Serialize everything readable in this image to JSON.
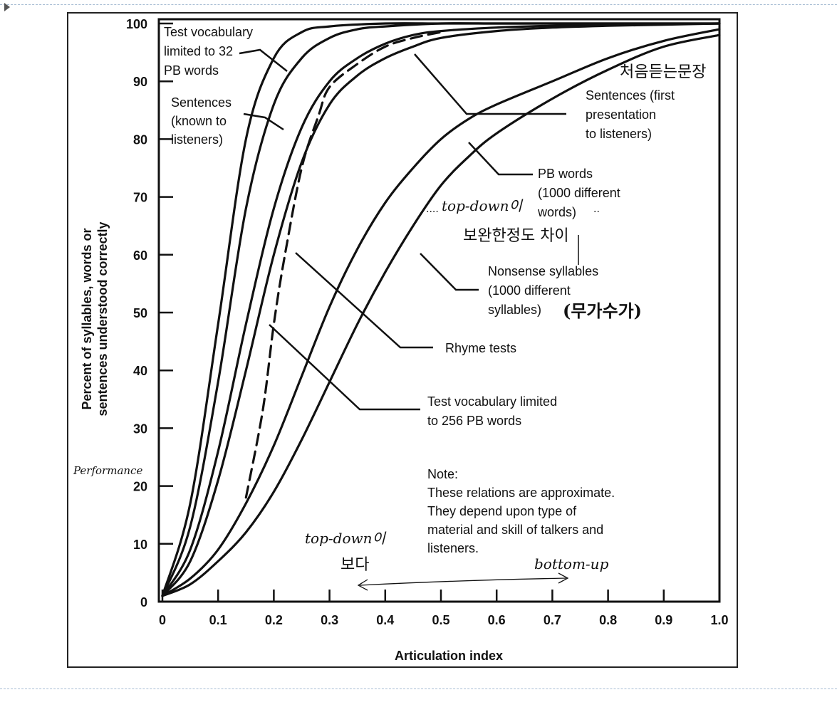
{
  "chart_data": {
    "type": "line",
    "xlabel": "Articulation index",
    "ylabel_line1": "Percent of syllables, words or",
    "ylabel_line2": "sentences understood correctly",
    "xlim": [
      0,
      1.0
    ],
    "ylim": [
      0,
      100
    ],
    "xticks": [
      "0",
      "0.1",
      "0.2",
      "0.3",
      "0.4",
      "0.5",
      "0.6",
      "0.7",
      "0.8",
      "0.9",
      "1.0"
    ],
    "yticks": [
      "0",
      "10",
      "20",
      "30",
      "40",
      "50",
      "60",
      "70",
      "80",
      "90",
      "100"
    ],
    "grid": false,
    "series": [
      {
        "key": "pb32",
        "style": "solid",
        "x": [
          0,
          0.05,
          0.1,
          0.15,
          0.2,
          0.25,
          0.3,
          0.4,
          0.5,
          0.6,
          0.7,
          0.8,
          0.9,
          1.0
        ],
        "y": [
          1,
          17,
          48,
          80,
          94,
          98.5,
          99.5,
          100,
          100,
          100,
          100,
          100,
          100,
          100
        ]
      },
      {
        "key": "sent_known",
        "style": "solid",
        "x": [
          0,
          0.05,
          0.1,
          0.15,
          0.2,
          0.25,
          0.3,
          0.35,
          0.4,
          0.5,
          0.6,
          0.7,
          0.8,
          0.9,
          1.0
        ],
        "y": [
          1,
          13,
          38,
          68,
          86,
          94,
          97.5,
          99,
          99.5,
          100,
          100,
          100,
          100,
          100,
          100
        ]
      },
      {
        "key": "pb256",
        "style": "solid",
        "x": [
          0,
          0.05,
          0.1,
          0.15,
          0.2,
          0.25,
          0.3,
          0.35,
          0.4,
          0.45,
          0.5,
          0.6,
          0.7,
          0.8,
          0.9,
          1.0
        ],
        "y": [
          1,
          9,
          26,
          48,
          68,
          82,
          90,
          94,
          96.5,
          98,
          98.7,
          99.3,
          99.6,
          99.8,
          99.9,
          100
        ]
      },
      {
        "key": "rhyme",
        "style": "solid",
        "x": [
          0,
          0.05,
          0.1,
          0.15,
          0.2,
          0.25,
          0.3,
          0.35,
          0.4,
          0.45,
          0.5,
          0.6,
          0.7,
          0.8,
          0.9,
          1.0
        ],
        "y": [
          1,
          7,
          21,
          40,
          60,
          76,
          86,
          91,
          94,
          96,
          97.5,
          98.7,
          99.3,
          99.6,
          99.8,
          100
        ]
      },
      {
        "key": "sent_first",
        "style": "dashed",
        "x": [
          0.15,
          0.18,
          0.2,
          0.22,
          0.25,
          0.28,
          0.3,
          0.35,
          0.4,
          0.45,
          0.5
        ],
        "y": [
          18,
          33,
          48,
          60,
          75,
          84,
          89,
          93,
          96,
          97.5,
          98.5
        ]
      },
      {
        "key": "pb1000",
        "style": "solid",
        "x": [
          0,
          0.05,
          0.1,
          0.15,
          0.2,
          0.25,
          0.3,
          0.35,
          0.4,
          0.45,
          0.5,
          0.55,
          0.6,
          0.7,
          0.8,
          0.9,
          1.0
        ],
        "y": [
          1,
          4,
          9,
          17,
          27,
          39,
          51,
          61,
          69,
          75,
          80,
          83.5,
          86,
          90,
          94,
          97,
          99
        ]
      },
      {
        "key": "nonsense",
        "style": "solid",
        "x": [
          0,
          0.05,
          0.1,
          0.15,
          0.2,
          0.25,
          0.3,
          0.35,
          0.4,
          0.45,
          0.5,
          0.55,
          0.6,
          0.7,
          0.8,
          0.9,
          1.0
        ],
        "y": [
          1,
          3,
          7,
          12,
          19,
          28,
          38,
          48,
          57,
          65,
          72,
          77,
          81,
          87,
          92,
          96,
          98
        ]
      }
    ],
    "annotations": {
      "pb32": [
        "Test vocabulary",
        "limited to 32",
        "PB words"
      ],
      "sent_known": [
        "Sentences",
        "(known to",
        "listeners)"
      ],
      "sent_first": [
        "Sentences (first",
        "presentation",
        "to listeners)"
      ],
      "pb1000": [
        "PB words",
        "(1000 different",
        "words)"
      ],
      "nonsense": [
        "Nonsense syllables",
        "(1000 different",
        "syllables)"
      ],
      "rhyme": [
        "Rhyme tests"
      ],
      "pb256": [
        "Test vocabulary limited",
        "to 256 PB words"
      ],
      "note": [
        "Note:",
        "These relations are approximate.",
        "They depend upon type of",
        "material and skill of talkers and",
        "listeners."
      ]
    },
    "handwritten": {
      "first_sentence": "처음듣는문장",
      "topdown": "top-down이",
      "difference": "보완한정도 차이",
      "guess": "(무가수가)",
      "performance": "Performance",
      "topdown2": "top-down이",
      "bonda": "보다",
      "bottomup": "bottom-up"
    }
  }
}
